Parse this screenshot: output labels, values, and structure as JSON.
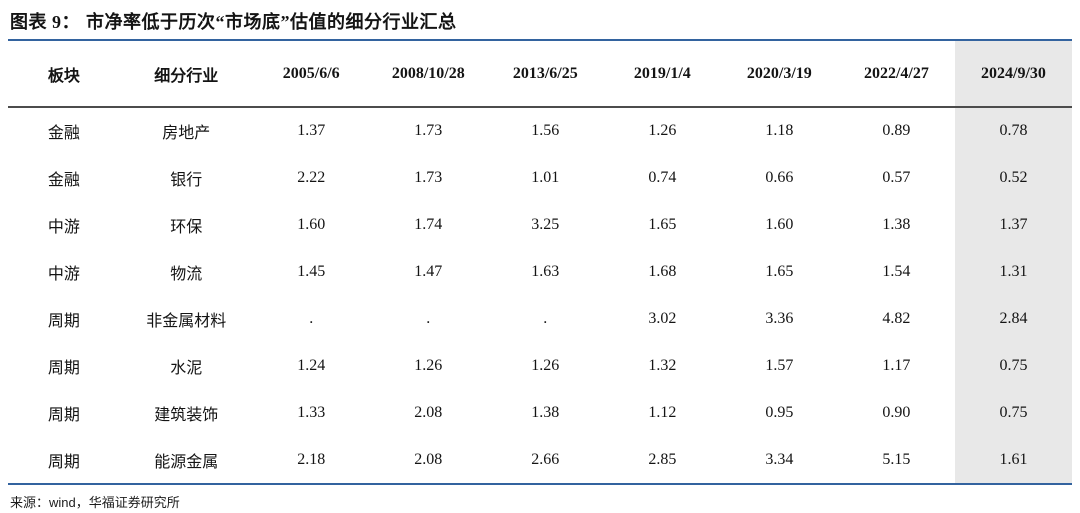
{
  "title": {
    "prefix": "图表 9：",
    "text": "市净率低于历次“市场底”估值的细分行业汇总"
  },
  "table": {
    "columns": [
      "板块",
      "细分行业",
      "2005/6/6",
      "2008/10/28",
      "2013/6/25",
      "2019/1/4",
      "2020/3/19",
      "2022/4/27",
      "2024/9/30"
    ],
    "highlighted_column": "2024/9/30",
    "rows": [
      {
        "sector": "金融",
        "industry": "房地产",
        "values": [
          "1.37",
          "1.73",
          "1.56",
          "1.26",
          "1.18",
          "0.89",
          "0.78"
        ]
      },
      {
        "sector": "金融",
        "industry": "银行",
        "values": [
          "2.22",
          "1.73",
          "1.01",
          "0.74",
          "0.66",
          "0.57",
          "0.52"
        ]
      },
      {
        "sector": "中游",
        "industry": "环保",
        "values": [
          "1.60",
          "1.74",
          "3.25",
          "1.65",
          "1.60",
          "1.38",
          "1.37"
        ]
      },
      {
        "sector": "中游",
        "industry": "物流",
        "values": [
          "1.45",
          "1.47",
          "1.63",
          "1.68",
          "1.65",
          "1.54",
          "1.31"
        ]
      },
      {
        "sector": "周期",
        "industry": "非金属材料",
        "values": [
          ".",
          ".",
          ".",
          "3.02",
          "3.36",
          "4.82",
          "2.84"
        ]
      },
      {
        "sector": "周期",
        "industry": "水泥",
        "values": [
          "1.24",
          "1.26",
          "1.26",
          "1.32",
          "1.57",
          "1.17",
          "0.75"
        ]
      },
      {
        "sector": "周期",
        "industry": "建筑装饰",
        "values": [
          "1.33",
          "2.08",
          "1.38",
          "1.12",
          "0.95",
          "0.90",
          "0.75"
        ]
      },
      {
        "sector": "周期",
        "industry": "能源金属",
        "values": [
          "2.18",
          "2.08",
          "2.66",
          "2.85",
          "3.34",
          "5.15",
          "1.61"
        ]
      }
    ]
  },
  "footer": {
    "label": "来源：",
    "source_en": "wind",
    "source_cn": "，华福证券研究所"
  },
  "colors": {
    "accent_blue": "#33639f",
    "header_rule_gray": "#4c4c4c",
    "highlight_column_bg": "#e8e8e8"
  }
}
